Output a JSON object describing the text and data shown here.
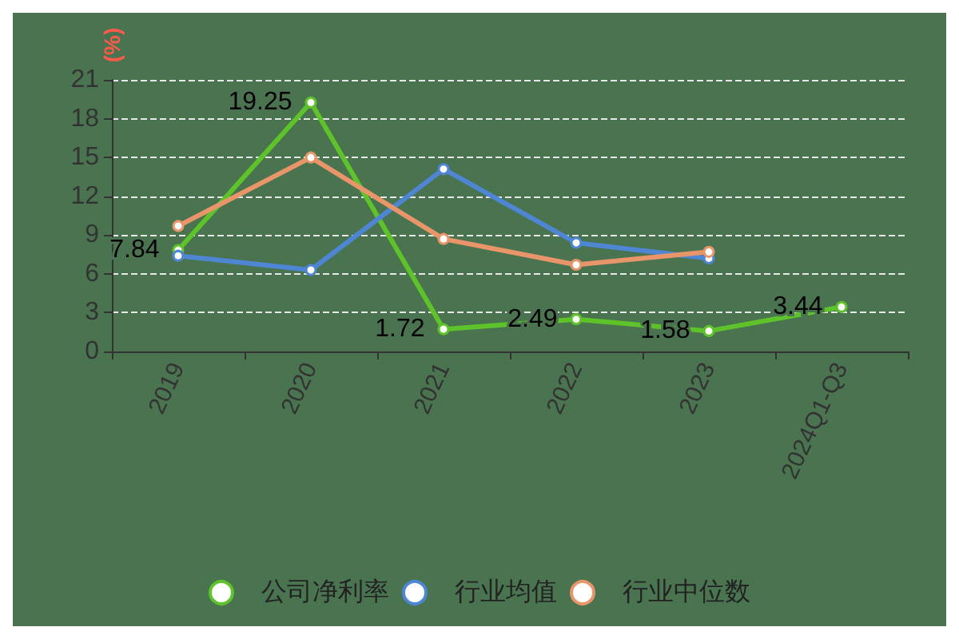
{
  "chart_data": {
    "type": "line",
    "ylabel": "(%)",
    "categories": [
      "2019",
      "2020",
      "2021",
      "2022",
      "2023",
      "2024Q1-Q3"
    ],
    "series": [
      {
        "name": "公司净利率",
        "color": "#5ec22a",
        "values": [
          7.84,
          19.25,
          1.72,
          2.49,
          1.58,
          3.44
        ],
        "value_labels": [
          "7.84",
          "19.25",
          "1.72",
          "2.49",
          "1.58",
          "3.44"
        ]
      },
      {
        "name": "行业均值",
        "color": "#4f86d4",
        "values": [
          7.4,
          6.3,
          14.1,
          8.4,
          7.2,
          null
        ]
      },
      {
        "name": "行业中位数",
        "color": "#e8956a",
        "values": [
          9.7,
          15.0,
          8.7,
          6.7,
          7.7,
          null
        ]
      }
    ],
    "ylim": [
      0,
      21
    ],
    "yticks": [
      0,
      3,
      6,
      9,
      12,
      15,
      18,
      21
    ],
    "grid": "y",
    "legend": "bottom",
    "marker": "circle"
  }
}
